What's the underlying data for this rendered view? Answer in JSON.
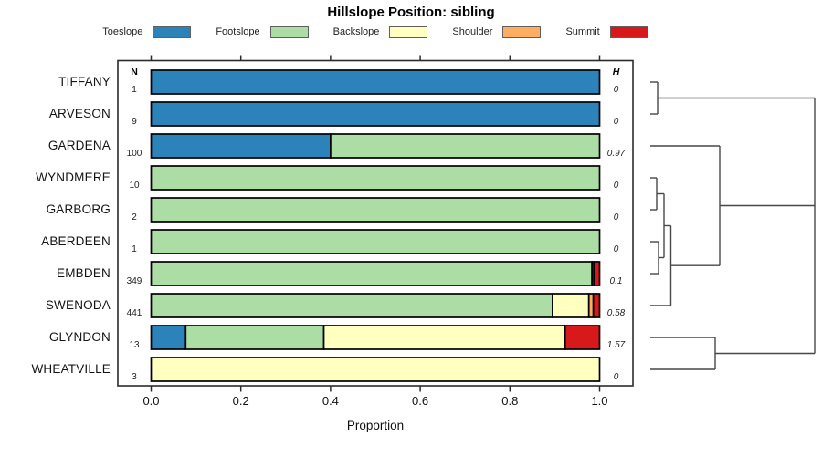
{
  "title": "Hillslope Position: sibling",
  "columns": {
    "n": "N",
    "h": "H"
  },
  "xaxis": {
    "label": "Proportion",
    "ticks": [
      0.0,
      0.2,
      0.4,
      0.6,
      0.8,
      1.0
    ]
  },
  "legend": [
    {
      "label": "Toeslope",
      "color": "#2b83ba"
    },
    {
      "label": "Footslope",
      "color": "#abdda4"
    },
    {
      "label": "Backslope",
      "color": "#ffffbf"
    },
    {
      "label": "Shoulder",
      "color": "#fdae61"
    },
    {
      "label": "Summit",
      "color": "#d7191c"
    }
  ],
  "chart_data": {
    "type": "bar",
    "subtype": "horizontal-stacked-proportions-with-dendrogram",
    "title": "Hillslope Position: sibling",
    "xlabel": "Proportion",
    "xlim": [
      0,
      1
    ],
    "legend_position": "top",
    "grid": false,
    "categories": [
      "TIFFANY",
      "ARVESON",
      "GARDENA",
      "WYNDMERE",
      "GARBORG",
      "ABERDEEN",
      "EMBDEN",
      "SWENODA",
      "GLYNDON",
      "WHEATVILLE"
    ],
    "n_values": [
      "1",
      "9",
      "100",
      "10",
      "2",
      "1",
      "349",
      "441",
      "13",
      "3"
    ],
    "h_values": [
      "0",
      "0",
      "0.97",
      "0",
      "0",
      "0",
      "0.1",
      "0.58",
      "1.57",
      "0"
    ],
    "series": [
      {
        "name": "Toeslope",
        "color": "#2b83ba",
        "values": [
          1,
          1,
          0.4,
          0,
          0,
          0,
          0,
          0,
          0.077,
          0
        ]
      },
      {
        "name": "Footslope",
        "color": "#abdda4",
        "values": [
          0,
          0,
          0.6,
          1,
          1,
          1,
          0.983,
          0.895,
          0.308,
          0
        ]
      },
      {
        "name": "Backslope",
        "color": "#ffffbf",
        "values": [
          0,
          0,
          0,
          0,
          0,
          0,
          0,
          0.081,
          0.538,
          1
        ]
      },
      {
        "name": "Shoulder",
        "color": "#fdae61",
        "values": [
          0,
          0,
          0,
          0,
          0,
          0,
          0.004,
          0.01,
          0,
          0
        ]
      },
      {
        "name": "Summit",
        "color": "#d7191c",
        "values": [
          0,
          0,
          0,
          0,
          0,
          0,
          0.013,
          0.014,
          0.077,
          0
        ]
      }
    ],
    "dendrogram_segments": [
      [
        712,
        90,
        720,
        90
      ],
      [
        712,
        125,
        720,
        125
      ],
      [
        720,
        90,
        720,
        125
      ],
      [
        720,
        107.5,
        892,
        107.5
      ],
      [
        712,
        160,
        788,
        160
      ],
      [
        712,
        195,
        719,
        195
      ],
      [
        712,
        230,
        719,
        230
      ],
      [
        719,
        195,
        719,
        230
      ],
      [
        719,
        212.5,
        727,
        212.5
      ],
      [
        712,
        265,
        721,
        265
      ],
      [
        712,
        300,
        721,
        300
      ],
      [
        721,
        265,
        721,
        300
      ],
      [
        721,
        282.5,
        727,
        282.5
      ],
      [
        727,
        212.5,
        727,
        282.5
      ],
      [
        727,
        247.5,
        734.5,
        247.5
      ],
      [
        712,
        335,
        734.5,
        335
      ],
      [
        734.5,
        247.5,
        734.5,
        335
      ],
      [
        734.5,
        291.2,
        788,
        291.2
      ],
      [
        788,
        160,
        788,
        291.2
      ],
      [
        788,
        225.5,
        892,
        225.5
      ],
      [
        712,
        370,
        783,
        370
      ],
      [
        712,
        405,
        783,
        405
      ],
      [
        783,
        370,
        783,
        405
      ],
      [
        783,
        387.5,
        892,
        387.5
      ],
      [
        892,
        107.5,
        892,
        387.5
      ]
    ]
  }
}
